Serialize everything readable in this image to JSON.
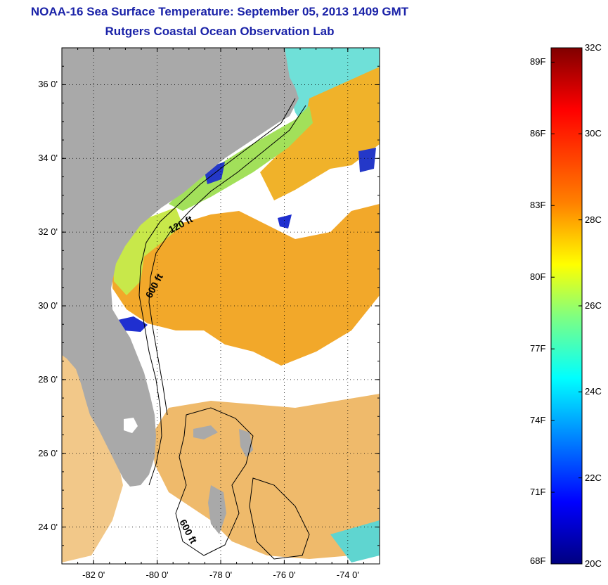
{
  "title": "NOAA-16 Sea Surface Temperature:  September 05, 2013 1409 GMT",
  "subtitle": "Rutgers Coastal Ocean Observation Lab",
  "map": {
    "lat_ticks": [
      {
        "value": 36,
        "label": "36 0'"
      },
      {
        "value": 34,
        "label": "34 0'"
      },
      {
        "value": 32,
        "label": "32 0'"
      },
      {
        "value": 30,
        "label": "30 0'"
      },
      {
        "value": 28,
        "label": "28 0'"
      },
      {
        "value": 26,
        "label": "26 0'"
      },
      {
        "value": 24,
        "label": "24 0'"
      }
    ],
    "lon_ticks": [
      {
        "value": -82,
        "label": "-82 0'"
      },
      {
        "value": -80,
        "label": "-80 0'"
      },
      {
        "value": -78,
        "label": "-78 0'"
      },
      {
        "value": -76,
        "label": "-76 0'"
      },
      {
        "value": -74,
        "label": "-74 0'"
      }
    ],
    "contour_labels": [
      {
        "text": "120 ft"
      },
      {
        "text": "600 ft"
      },
      {
        "text": "600 ft"
      }
    ],
    "colors": {
      "land": "#a9a9a9",
      "cloud": "#ffffff",
      "warm": "#f5a623",
      "cool": "#7ed957",
      "cold": "#1f2fd0"
    }
  },
  "colorbar": {
    "celsius": [
      "32C",
      "30C",
      "28C",
      "26C",
      "24C",
      "22C",
      "20C"
    ],
    "fahrenheit": [
      "89F",
      "86F",
      "83F",
      "80F",
      "77F",
      "74F",
      "71F",
      "68F"
    ],
    "colors": [
      "#800000",
      "#ff0000",
      "#ff8000",
      "#ffff00",
      "#80ff80",
      "#00ffff",
      "#0080ff",
      "#0000ff",
      "#000080"
    ]
  }
}
